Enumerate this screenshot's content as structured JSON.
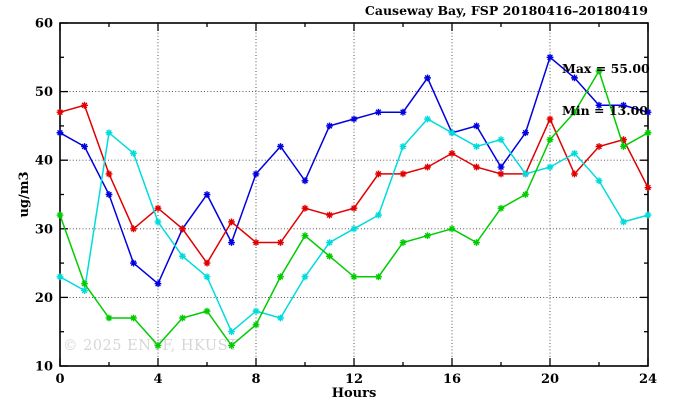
{
  "title": "Causeway Bay, FSP 20180416–20180419",
  "annotation": {
    "max_label": "Max = 55.00",
    "min_label": "Min = 13.00"
  },
  "watermark": "© 2025 ENVF, HKUST",
  "chart_data": {
    "type": "line",
    "title": "Causeway Bay, FSP 20180416–20180419",
    "xlabel": "Hours",
    "ylabel": "ug/m3",
    "xlim": [
      0,
      24
    ],
    "ylim": [
      10,
      60
    ],
    "x_major_ticks": [
      0,
      4,
      8,
      12,
      16,
      20,
      24
    ],
    "x_minor_step": 2,
    "y_major_ticks": [
      10,
      20,
      30,
      40,
      50,
      60
    ],
    "y_minor_step": 5,
    "grid": true,
    "legend": "none",
    "stats": {
      "max": 55.0,
      "min": 13.0
    },
    "x": [
      0,
      1,
      2,
      3,
      4,
      5,
      6,
      7,
      8,
      9,
      10,
      11,
      12,
      13,
      14,
      15,
      16,
      17,
      18,
      19,
      20,
      21,
      22,
      23,
      24
    ],
    "series": [
      {
        "name": "blue",
        "color": "#0000e0",
        "values": [
          44,
          42,
          35,
          25,
          22,
          30,
          35,
          28,
          38,
          42,
          37,
          45,
          46,
          47,
          47,
          52,
          44,
          45,
          39,
          44,
          55,
          52,
          48,
          48,
          47
        ]
      },
      {
        "name": "red",
        "color": "#e00000",
        "values": [
          47,
          48,
          38,
          30,
          33,
          30,
          25,
          31,
          28,
          28,
          33,
          32,
          33,
          38,
          38,
          39,
          41,
          39,
          38,
          38,
          46,
          38,
          42,
          43,
          36
        ]
      },
      {
        "name": "cyan",
        "color": "#00dcdc",
        "values": [
          23,
          21,
          44,
          41,
          31,
          26,
          23,
          15,
          18,
          17,
          23,
          28,
          30,
          32,
          42,
          46,
          44,
          42,
          43,
          38,
          39,
          41,
          37,
          31,
          32
        ]
      },
      {
        "name": "green",
        "color": "#00cc00",
        "values": [
          32,
          22,
          17,
          17,
          13,
          17,
          18,
          13,
          16,
          23,
          29,
          26,
          23,
          23,
          28,
          29,
          30,
          28,
          33,
          35,
          43,
          47,
          53,
          42,
          44
        ]
      }
    ]
  }
}
